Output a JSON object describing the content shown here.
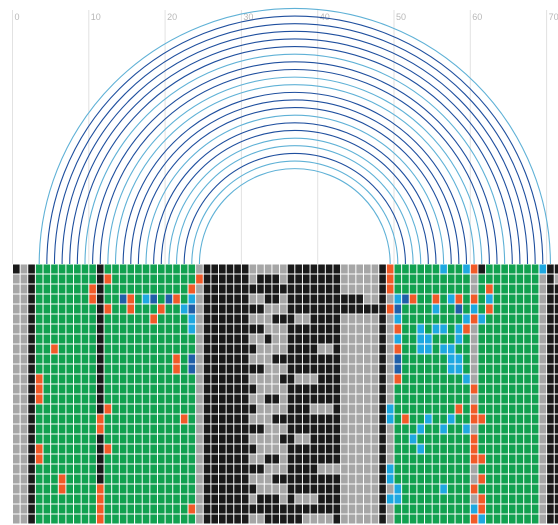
{
  "axis": {
    "ticks": [
      {
        "value": 0,
        "label": "0"
      },
      {
        "value": 10,
        "label": "10"
      },
      {
        "value": 20,
        "label": "20"
      },
      {
        "value": 30,
        "label": "30"
      },
      {
        "value": 40,
        "label": "40"
      },
      {
        "value": 50,
        "label": "50"
      },
      {
        "value": 60,
        "label": "60"
      },
      {
        "value": 70,
        "label": "70"
      }
    ],
    "range": [
      0,
      73
    ]
  },
  "colors": {
    "black": "#1a1a1a",
    "gray": "#a6a6a6",
    "green": "#12a150",
    "red": "#f05a28",
    "cyan": "#1ea8e0",
    "blue": "#1f5fa8",
    "arc_dark": "#1f4f9e",
    "arc_light": "#5fb1d6",
    "gridline": "#e2e2e2"
  },
  "arcs": [
    {
      "from": 3,
      "to": 70,
      "shade": "light"
    },
    {
      "from": 4,
      "to": 69,
      "shade": "dark"
    },
    {
      "from": 5,
      "to": 68,
      "shade": "dark"
    },
    {
      "from": 6,
      "to": 67,
      "shade": "dark"
    },
    {
      "from": 7,
      "to": 66,
      "shade": "dark"
    },
    {
      "from": 8,
      "to": 65,
      "shade": "dark"
    },
    {
      "from": 9,
      "to": 64,
      "shade": "light"
    },
    {
      "from": 10,
      "to": 63,
      "shade": "dark"
    },
    {
      "from": 11,
      "to": 62,
      "shade": "dark"
    },
    {
      "from": 12,
      "to": 61,
      "shade": "light"
    },
    {
      "from": 13,
      "to": 60,
      "shade": "light"
    },
    {
      "from": 14,
      "to": 59,
      "shade": "dark"
    },
    {
      "from": 15,
      "to": 58,
      "shade": "dark"
    },
    {
      "from": 16,
      "to": 57,
      "shade": "dark"
    },
    {
      "from": 17,
      "to": 56,
      "shade": "light"
    },
    {
      "from": 18,
      "to": 55,
      "shade": "dark"
    },
    {
      "from": 19,
      "to": 54,
      "shade": "dark"
    },
    {
      "from": 20,
      "to": 53,
      "shade": "light"
    },
    {
      "from": 21,
      "to": 52,
      "shade": "light"
    },
    {
      "from": 22,
      "to": 51,
      "shade": "dark"
    },
    {
      "from": 23,
      "to": 50,
      "shade": "light"
    },
    {
      "from": 24,
      "to": 49,
      "shade": "light"
    }
  ],
  "grid": {
    "rows": 26,
    "cols": 73,
    "column_bands": [
      {
        "from": 0,
        "to": 1,
        "color": "gray"
      },
      {
        "from": 2,
        "to": 2,
        "color": "black"
      },
      {
        "from": 3,
        "to": 10,
        "color": "green"
      },
      {
        "from": 11,
        "to": 11,
        "color": "black"
      },
      {
        "from": 12,
        "to": 23,
        "color": "green"
      },
      {
        "from": 24,
        "to": 24,
        "color": "gray"
      },
      {
        "from": 25,
        "to": 30,
        "color": "black"
      },
      {
        "from": 31,
        "to": 35,
        "color": "gray"
      },
      {
        "from": 36,
        "to": 42,
        "color": "black"
      },
      {
        "from": 43,
        "to": 47,
        "color": "gray"
      },
      {
        "from": 48,
        "to": 48,
        "color": "black"
      },
      {
        "from": 49,
        "to": 49,
        "color": "gray"
      },
      {
        "from": 50,
        "to": 59,
        "color": "green"
      },
      {
        "from": 60,
        "to": 60,
        "color": "gray"
      },
      {
        "from": 61,
        "to": 68,
        "color": "green"
      },
      {
        "from": 69,
        "to": 69,
        "color": "gray"
      },
      {
        "from": 70,
        "to": 72,
        "color": "black"
      }
    ],
    "overrides": [
      {
        "r": 0,
        "c": 0,
        "color": "black"
      },
      {
        "r": 0,
        "c": 49,
        "color": "red"
      },
      {
        "r": 0,
        "c": 56,
        "color": "cyan"
      },
      {
        "r": 0,
        "c": 59,
        "color": "cyan"
      },
      {
        "r": 0,
        "c": 60,
        "color": "red"
      },
      {
        "r": 0,
        "c": 61,
        "color": "black"
      },
      {
        "r": 0,
        "c": 69,
        "color": "cyan"
      },
      {
        "r": 0,
        "c": 70,
        "color": "black"
      },
      {
        "r": 0,
        "c": 72,
        "color": "black"
      },
      {
        "r": 1,
        "c": 12,
        "color": "red"
      },
      {
        "r": 1,
        "c": 24,
        "color": "red"
      },
      {
        "r": 1,
        "c": 49,
        "color": "red"
      },
      {
        "r": 1,
        "c": 71,
        "color": "gray"
      },
      {
        "r": 2,
        "c": 10,
        "color": "red"
      },
      {
        "r": 2,
        "c": 23,
        "color": "red"
      },
      {
        "r": 2,
        "c": 49,
        "color": "red"
      },
      {
        "r": 2,
        "c": 62,
        "color": "red"
      },
      {
        "r": 3,
        "c": 10,
        "color": "red"
      },
      {
        "r": 3,
        "c": 14,
        "color": "blue"
      },
      {
        "r": 3,
        "c": 15,
        "color": "red"
      },
      {
        "r": 3,
        "c": 17,
        "color": "cyan"
      },
      {
        "r": 3,
        "c": 18,
        "color": "blue"
      },
      {
        "r": 3,
        "c": 20,
        "color": "blue"
      },
      {
        "r": 3,
        "c": 21,
        "color": "red"
      },
      {
        "r": 3,
        "c": 23,
        "color": "cyan"
      },
      {
        "r": 3,
        "c": 50,
        "color": "cyan"
      },
      {
        "r": 3,
        "c": 51,
        "color": "blue"
      },
      {
        "r": 3,
        "c": 52,
        "color": "red"
      },
      {
        "r": 3,
        "c": 55,
        "color": "red"
      },
      {
        "r": 3,
        "c": 57,
        "color": "cyan"
      },
      {
        "r": 3,
        "c": 58,
        "color": "red"
      },
      {
        "r": 3,
        "c": 60,
        "color": "red"
      },
      {
        "r": 3,
        "c": 62,
        "color": "cyan"
      },
      {
        "r": 4,
        "c": 12,
        "color": "red"
      },
      {
        "r": 4,
        "c": 15,
        "color": "red"
      },
      {
        "r": 4,
        "c": 19,
        "color": "red"
      },
      {
        "r": 4,
        "c": 22,
        "color": "cyan"
      },
      {
        "r": 4,
        "c": 23,
        "color": "blue"
      },
      {
        "r": 4,
        "c": 49,
        "color": "red"
      },
      {
        "r": 4,
        "c": 50,
        "color": "blue"
      },
      {
        "r": 4,
        "c": 55,
        "color": "cyan"
      },
      {
        "r": 4,
        "c": 58,
        "color": "blue"
      },
      {
        "r": 4,
        "c": 60,
        "color": "cyan"
      },
      {
        "r": 4,
        "c": 62,
        "color": "red"
      },
      {
        "r": 5,
        "c": 18,
        "color": "red"
      },
      {
        "r": 5,
        "c": 23,
        "color": "cyan"
      },
      {
        "r": 5,
        "c": 50,
        "color": "cyan"
      },
      {
        "r": 5,
        "c": 59,
        "color": "cyan"
      },
      {
        "r": 5,
        "c": 60,
        "color": "red"
      },
      {
        "r": 5,
        "c": 61,
        "color": "cyan"
      },
      {
        "r": 6,
        "c": 23,
        "color": "cyan"
      },
      {
        "r": 6,
        "c": 50,
        "color": "red"
      },
      {
        "r": 6,
        "c": 53,
        "color": "cyan"
      },
      {
        "r": 6,
        "c": 55,
        "color": "cyan"
      },
      {
        "r": 6,
        "c": 56,
        "color": "cyan"
      },
      {
        "r": 6,
        "c": 58,
        "color": "cyan"
      },
      {
        "r": 6,
        "c": 59,
        "color": "red"
      },
      {
        "r": 7,
        "c": 50,
        "color": "cyan"
      },
      {
        "r": 7,
        "c": 53,
        "color": "cyan"
      },
      {
        "r": 7,
        "c": 54,
        "color": "cyan"
      },
      {
        "r": 7,
        "c": 58,
        "color": "cyan"
      },
      {
        "r": 8,
        "c": 5,
        "color": "red"
      },
      {
        "r": 8,
        "c": 50,
        "color": "red"
      },
      {
        "r": 8,
        "c": 53,
        "color": "cyan"
      },
      {
        "r": 8,
        "c": 54,
        "color": "cyan"
      },
      {
        "r": 8,
        "c": 56,
        "color": "cyan"
      },
      {
        "r": 8,
        "c": 57,
        "color": "cyan"
      },
      {
        "r": 9,
        "c": 21,
        "color": "red"
      },
      {
        "r": 9,
        "c": 23,
        "color": "blue"
      },
      {
        "r": 9,
        "c": 50,
        "color": "blue"
      },
      {
        "r": 9,
        "c": 57,
        "color": "cyan"
      },
      {
        "r": 9,
        "c": 58,
        "color": "cyan"
      },
      {
        "r": 10,
        "c": 21,
        "color": "red"
      },
      {
        "r": 10,
        "c": 23,
        "color": "blue"
      },
      {
        "r": 10,
        "c": 50,
        "color": "blue"
      },
      {
        "r": 10,
        "c": 57,
        "color": "cyan"
      },
      {
        "r": 10,
        "c": 58,
        "color": "cyan"
      },
      {
        "r": 11,
        "c": 3,
        "color": "red"
      },
      {
        "r": 11,
        "c": 50,
        "color": "red"
      },
      {
        "r": 11,
        "c": 59,
        "color": "cyan"
      },
      {
        "r": 12,
        "c": 3,
        "color": "red"
      },
      {
        "r": 12,
        "c": 60,
        "color": "red"
      },
      {
        "r": 13,
        "c": 3,
        "color": "red"
      },
      {
        "r": 14,
        "c": 12,
        "color": "red"
      },
      {
        "r": 14,
        "c": 49,
        "color": "cyan"
      },
      {
        "r": 14,
        "c": 58,
        "color": "red"
      },
      {
        "r": 14,
        "c": 60,
        "color": "red"
      },
      {
        "r": 15,
        "c": 11,
        "color": "red"
      },
      {
        "r": 15,
        "c": 22,
        "color": "red"
      },
      {
        "r": 15,
        "c": 49,
        "color": "cyan"
      },
      {
        "r": 15,
        "c": 51,
        "color": "red"
      },
      {
        "r": 15,
        "c": 54,
        "color": "cyan"
      },
      {
        "r": 15,
        "c": 57,
        "color": "cyan"
      },
      {
        "r": 15,
        "c": 60,
        "color": "red"
      },
      {
        "r": 15,
        "c": 61,
        "color": "red"
      },
      {
        "r": 16,
        "c": 11,
        "color": "red"
      },
      {
        "r": 16,
        "c": 53,
        "color": "cyan"
      },
      {
        "r": 16,
        "c": 56,
        "color": "cyan"
      },
      {
        "r": 16,
        "c": 59,
        "color": "cyan"
      },
      {
        "r": 17,
        "c": 52,
        "color": "cyan"
      },
      {
        "r": 17,
        "c": 60,
        "color": "red"
      },
      {
        "r": 18,
        "c": 3,
        "color": "red"
      },
      {
        "r": 18,
        "c": 12,
        "color": "red"
      },
      {
        "r": 18,
        "c": 53,
        "color": "cyan"
      },
      {
        "r": 18,
        "c": 60,
        "color": "red"
      },
      {
        "r": 19,
        "c": 3,
        "color": "red"
      },
      {
        "r": 19,
        "c": 60,
        "color": "red"
      },
      {
        "r": 19,
        "c": 61,
        "color": "red"
      },
      {
        "r": 20,
        "c": 49,
        "color": "cyan"
      },
      {
        "r": 21,
        "c": 6,
        "color": "red"
      },
      {
        "r": 21,
        "c": 49,
        "color": "cyan"
      },
      {
        "r": 21,
        "c": 61,
        "color": "red"
      },
      {
        "r": 22,
        "c": 6,
        "color": "red"
      },
      {
        "r": 22,
        "c": 11,
        "color": "red"
      },
      {
        "r": 22,
        "c": 50,
        "color": "cyan"
      },
      {
        "r": 22,
        "c": 56,
        "color": "cyan"
      },
      {
        "r": 22,
        "c": 60,
        "color": "red"
      },
      {
        "r": 23,
        "c": 11,
        "color": "red"
      },
      {
        "r": 23,
        "c": 49,
        "color": "cyan"
      },
      {
        "r": 23,
        "c": 50,
        "color": "cyan"
      },
      {
        "r": 23,
        "c": 61,
        "color": "red"
      },
      {
        "r": 24,
        "c": 11,
        "color": "red"
      },
      {
        "r": 24,
        "c": 23,
        "color": "red"
      },
      {
        "r": 24,
        "c": 60,
        "color": "cyan"
      },
      {
        "r": 24,
        "c": 61,
        "color": "red"
      },
      {
        "r": 25,
        "c": 11,
        "color": "red"
      },
      {
        "r": 25,
        "c": 60,
        "color": "red"
      },
      {
        "r": 25,
        "c": 61,
        "color": "cyan"
      }
    ],
    "pattern_runs": [
      {
        "r": 1,
        "from": 32,
        "to": 34,
        "color": "black"
      },
      {
        "r": 2,
        "from": 31,
        "to": 35,
        "color": "black"
      },
      {
        "r": 3,
        "from": 33,
        "to": 34,
        "color": "black"
      },
      {
        "r": 3,
        "from": 43,
        "to": 45,
        "color": "black"
      },
      {
        "r": 4,
        "from": 31,
        "to": 32,
        "color": "black"
      },
      {
        "r": 4,
        "from": 43,
        "to": 47,
        "color": "black"
      },
      {
        "r": 5,
        "from": 34,
        "to": 35,
        "color": "black"
      },
      {
        "r": 6,
        "from": 31,
        "to": 32,
        "color": "black"
      },
      {
        "r": 7,
        "from": 33,
        "to": 33,
        "color": "black"
      },
      {
        "r": 8,
        "from": 31,
        "to": 31,
        "color": "black"
      },
      {
        "r": 9,
        "from": 34,
        "to": 35,
        "color": "black"
      },
      {
        "r": 10,
        "from": 31,
        "to": 32,
        "color": "black"
      },
      {
        "r": 11,
        "from": 35,
        "to": 35,
        "color": "black"
      },
      {
        "r": 12,
        "from": 31,
        "to": 31,
        "color": "black"
      },
      {
        "r": 13,
        "from": 33,
        "to": 34,
        "color": "black"
      },
      {
        "r": 14,
        "from": 31,
        "to": 31,
        "color": "black"
      },
      {
        "r": 15,
        "from": 34,
        "to": 35,
        "color": "black"
      },
      {
        "r": 16,
        "from": 31,
        "to": 32,
        "color": "black"
      },
      {
        "r": 17,
        "from": 35,
        "to": 35,
        "color": "black"
      },
      {
        "r": 18,
        "from": 31,
        "to": 31,
        "color": "black"
      },
      {
        "r": 19,
        "from": 33,
        "to": 34,
        "color": "black"
      },
      {
        "r": 20,
        "from": 31,
        "to": 32,
        "color": "black"
      },
      {
        "r": 21,
        "from": 34,
        "to": 35,
        "color": "black"
      },
      {
        "r": 22,
        "from": 31,
        "to": 31,
        "color": "black"
      },
      {
        "r": 23,
        "from": 32,
        "to": 34,
        "color": "black"
      },
      {
        "r": 24,
        "from": 31,
        "to": 35,
        "color": "black"
      },
      {
        "r": 25,
        "from": 33,
        "to": 35,
        "color": "black"
      },
      {
        "r": 5,
        "from": 37,
        "to": 38,
        "color": "gray"
      },
      {
        "r": 8,
        "from": 40,
        "to": 41,
        "color": "gray"
      },
      {
        "r": 11,
        "from": 37,
        "to": 39,
        "color": "gray"
      },
      {
        "r": 14,
        "from": 39,
        "to": 41,
        "color": "gray"
      },
      {
        "r": 17,
        "from": 37,
        "to": 38,
        "color": "gray"
      },
      {
        "r": 20,
        "from": 40,
        "to": 42,
        "color": "gray"
      },
      {
        "r": 23,
        "from": 37,
        "to": 39,
        "color": "gray"
      },
      {
        "r": 25,
        "from": 38,
        "to": 41,
        "color": "gray"
      }
    ]
  }
}
